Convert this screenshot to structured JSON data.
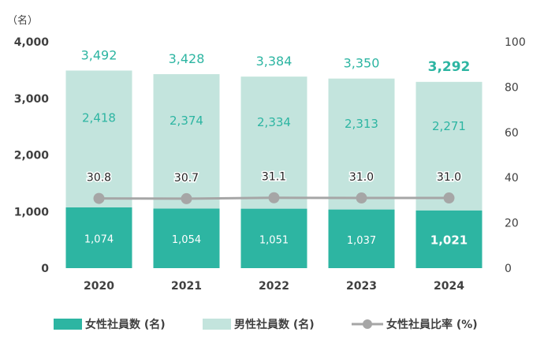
{
  "chart_data": {
    "type": "bar",
    "stacked": true,
    "categories": [
      "2020",
      "2021",
      "2022",
      "2023",
      "2024"
    ],
    "y_unit_label": "（名）",
    "ylim": [
      0,
      4000
    ],
    "y_ticks": [
      "0",
      "1,000",
      "2,000",
      "3,000",
      "4,000"
    ],
    "y_tick_values": [
      0,
      1000,
      2000,
      3000,
      4000
    ],
    "y2lim": [
      0,
      100
    ],
    "y2_ticks": [
      "0",
      "20",
      "40",
      "60",
      "80",
      "100"
    ],
    "y2_tick_values": [
      0,
      20,
      40,
      60,
      80,
      100
    ],
    "grid": false,
    "legend_position": "bottom",
    "series": [
      {
        "name": "女性社員数 (名)",
        "kind": "bar",
        "color": "#2db5a2",
        "values": [
          1074,
          1054,
          1051,
          1037,
          1021
        ],
        "labels": [
          "1,074",
          "1,054",
          "1,051",
          "1,037",
          "1,021"
        ]
      },
      {
        "name": "男性社員数 (名)",
        "kind": "bar",
        "color": "#c3e4dd",
        "values": [
          2418,
          2374,
          2334,
          2313,
          2271
        ],
        "labels": [
          "2,418",
          "2,374",
          "2,334",
          "2,313",
          "2,271"
        ]
      },
      {
        "name": "女性社員比率 (%)",
        "kind": "line",
        "axis": "right",
        "color": "#a6a6a6",
        "values": [
          30.8,
          30.7,
          31.1,
          31.0,
          31.0
        ],
        "labels": [
          "30.8",
          "30.7",
          "31.1",
          "31.0",
          "31.0"
        ]
      }
    ],
    "totals": [
      3492,
      3428,
      3384,
      3350,
      3292
    ],
    "total_labels": [
      "3,492",
      "3,428",
      "3,384",
      "3,350",
      "3,292"
    ],
    "total_label_color": "#2db5a2"
  }
}
